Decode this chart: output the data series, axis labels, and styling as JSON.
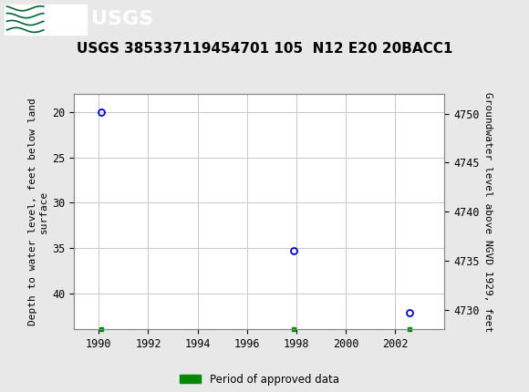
{
  "title": "USGS 385337119454701 105  N12 E20 20BACC1",
  "header_bg_color": "#006633",
  "outer_bg_color": "#e8e8e8",
  "axis_bg_color": "#ffffff",
  "grid_color": "#c8c8c8",
  "data_points": [
    {
      "year": 1990.1,
      "depth": 20.0
    },
    {
      "year": 1997.9,
      "depth": 35.3
    },
    {
      "year": 2002.6,
      "depth": 42.2
    }
  ],
  "approved_ticks": [
    1990.1,
    1997.9,
    2002.6
  ],
  "marker_color": "#0000cc",
  "approved_color": "#008800",
  "ylabel_left": "Depth to water level, feet below land\nsurface",
  "ylabel_right": "Groundwater level above NGVD 1929, feet",
  "xlim": [
    1989.0,
    2004.0
  ],
  "ylim_left": [
    44.0,
    18.0
  ],
  "ylim_right": [
    4728.0,
    4752.0
  ],
  "xticks": [
    1990,
    1992,
    1994,
    1996,
    1998,
    2000,
    2002
  ],
  "yticks_left": [
    20,
    25,
    30,
    35,
    40
  ],
  "yticks_right": [
    4750,
    4745,
    4740,
    4735,
    4730
  ],
  "legend_label": "Period of approved data",
  "title_fontsize": 11,
  "label_fontsize": 8,
  "tick_fontsize": 8.5
}
